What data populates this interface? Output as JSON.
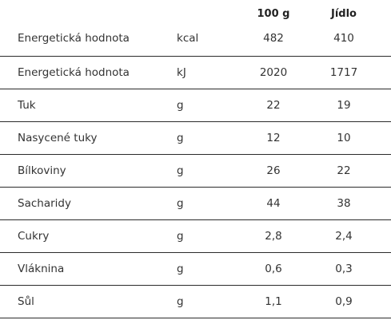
{
  "header": {
    "col_100g": "100 g",
    "col_portion": "Jídlo"
  },
  "rows": [
    {
      "name": "Energetická hodnota",
      "unit": "kcal",
      "per100g": "482",
      "portion": "410"
    },
    {
      "name": "Energetická hodnota",
      "unit": "kJ",
      "per100g": "2020",
      "portion": "1717"
    },
    {
      "name": "Tuk",
      "unit": "g",
      "per100g": "22",
      "portion": "19"
    },
    {
      "name": "Nasycené tuky",
      "unit": "g",
      "per100g": "12",
      "portion": "10"
    },
    {
      "name": "Bílkoviny",
      "unit": "g",
      "per100g": "26",
      "portion": "22"
    },
    {
      "name": "Sacharidy",
      "unit": "g",
      "per100g": "44",
      "portion": "38"
    },
    {
      "name": "Cukry",
      "unit": "g",
      "per100g": "2,8",
      "portion": "2,4"
    },
    {
      "name": "Vláknina",
      "unit": "g",
      "per100g": "0,6",
      "portion": "0,3"
    },
    {
      "name": "Sůl",
      "unit": "g",
      "per100g": "1,1",
      "portion": "0,9"
    }
  ]
}
